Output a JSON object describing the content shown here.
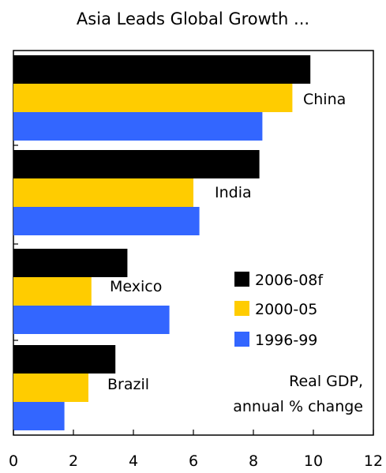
{
  "chart_data": {
    "type": "bar",
    "orientation": "horizontal",
    "title": "Asia Leads Global Growth ...",
    "categories": [
      "China",
      "India",
      "Mexico",
      "Brazil"
    ],
    "series": [
      {
        "name": "2006-08f",
        "color": "#000000",
        "values": [
          9.9,
          8.2,
          3.8,
          3.4
        ]
      },
      {
        "name": "2000-05",
        "color": "#FFCC00",
        "values": [
          9.3,
          6.0,
          2.6,
          2.5
        ]
      },
      {
        "name": "1996-99",
        "color": "#3366FF",
        "values": [
          8.3,
          6.2,
          5.2,
          1.7
        ]
      }
    ],
    "x_ticks": [
      "0",
      "2",
      "4",
      "6",
      "8",
      "10",
      "12"
    ],
    "xlim": [
      0,
      12
    ],
    "note_lines": [
      "Real GDP,",
      "annual % change"
    ],
    "legend_position": "right"
  }
}
